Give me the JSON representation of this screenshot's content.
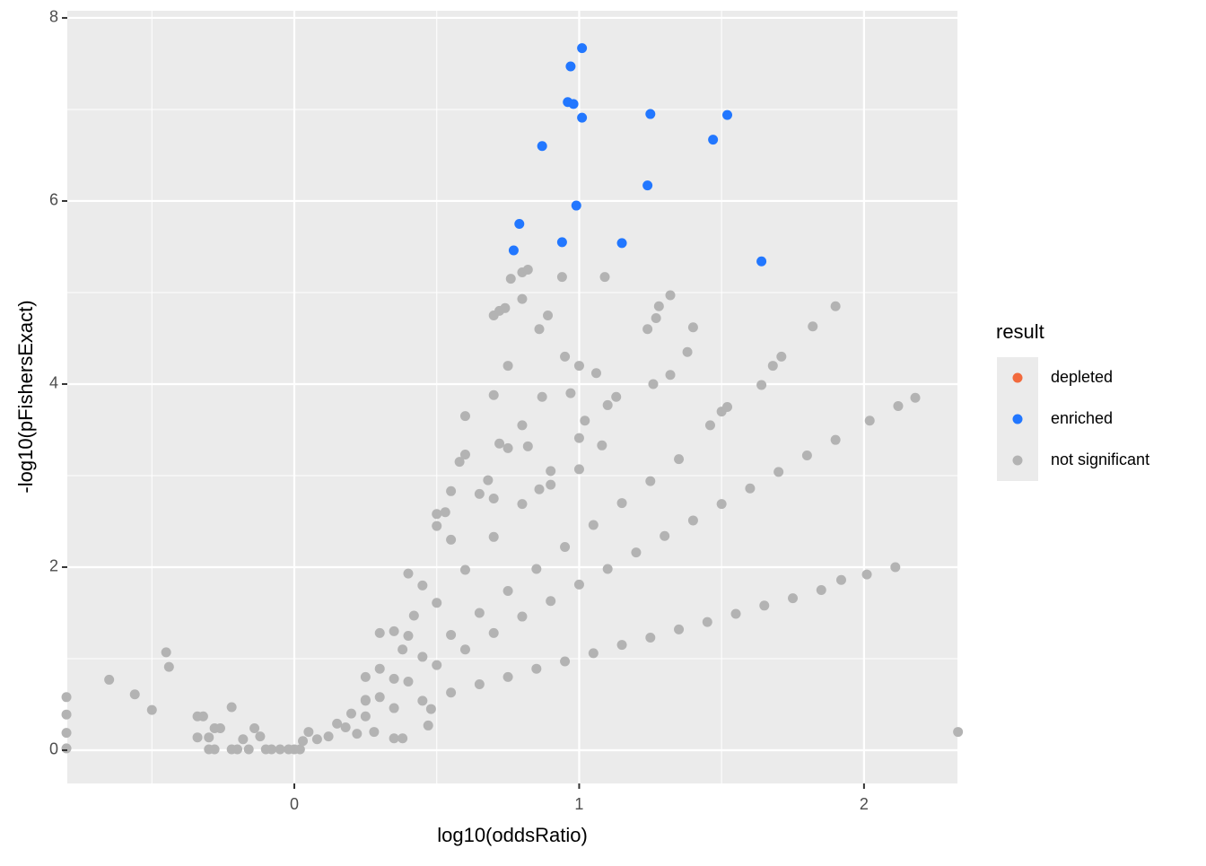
{
  "chart_data": {
    "type": "scatter",
    "x_label": "log10(oddsRatio)",
    "y_label": "-log10(pFishersExact)",
    "legend_title": "result",
    "legend": "right",
    "grid": true,
    "xlim": [
      -0.797,
      2.328
    ],
    "ylim": [
      -0.363,
      8.078
    ],
    "xticks": [
      0,
      1,
      2
    ],
    "yticks": [
      0,
      2,
      4,
      6,
      8
    ],
    "xminor": [
      -0.5,
      0.5,
      1.5
    ],
    "yminor": [
      1,
      3,
      5,
      7
    ],
    "series": [
      {
        "name": "depleted",
        "color": "#f26a3d",
        "x": [],
        "y": []
      },
      {
        "name": "enriched",
        "color": "#2277ff",
        "x": [
          1.01,
          0.97,
          0.96,
          0.98,
          1.01,
          1.25,
          1.52,
          1.47,
          0.87,
          1.24,
          0.99,
          0.79,
          0.94,
          1.15,
          0.77,
          1.64
        ],
        "y": [
          7.67,
          7.47,
          7.08,
          7.06,
          6.91,
          6.95,
          6.94,
          6.67,
          6.6,
          6.17,
          5.95,
          5.75,
          5.55,
          5.54,
          5.46,
          5.34
        ]
      },
      {
        "name": "not significant",
        "color": "#b3b3b3",
        "x": [
          -0.8,
          -0.8,
          -0.8,
          -0.8,
          -0.65,
          -0.56,
          -0.5,
          -0.45,
          -0.44,
          -0.34,
          -0.32,
          -0.34,
          -0.3,
          -0.28,
          -0.26,
          -0.3,
          -0.28,
          -0.22,
          -0.22,
          -0.2,
          -0.18,
          -0.16,
          -0.14,
          -0.12,
          -0.1,
          -0.08,
          -0.05,
          -0.02,
          0.0,
          0.02,
          0.03,
          2.33,
          0.05,
          0.15,
          0.25,
          0.35,
          0.45,
          0.55,
          0.65,
          0.75,
          0.85,
          0.95,
          1.05,
          1.15,
          1.25,
          1.35,
          1.45,
          1.55,
          1.65,
          1.75,
          1.85,
          1.92,
          2.01,
          2.11,
          0.2,
          0.3,
          0.4,
          0.5,
          0.6,
          0.7,
          0.8,
          0.9,
          1.0,
          1.1,
          1.2,
          1.3,
          1.4,
          1.5,
          1.6,
          1.7,
          1.8,
          1.9,
          0.25,
          0.35,
          0.45,
          0.55,
          0.65,
          0.75,
          0.85,
          0.95,
          1.05,
          1.15,
          1.25,
          1.35,
          1.46,
          1.5,
          1.52,
          0.3,
          0.4,
          0.5,
          0.6,
          0.7,
          0.8,
          0.9,
          1.0,
          1.1,
          1.38,
          1.32,
          1.26,
          0.25,
          0.35,
          0.45,
          0.55,
          0.65,
          0.75,
          0.8,
          0.3,
          0.4,
          0.5,
          0.6,
          0.7,
          0.75,
          0.7,
          0.72,
          0.74,
          0.76,
          0.8,
          0.82,
          0.8,
          0.86,
          0.89,
          0.94,
          1.09,
          1.0,
          0.95,
          0.97,
          0.87,
          1.06,
          1.13,
          1.28,
          1.32,
          1.4,
          1.64,
          1.68,
          1.71,
          1.82,
          1.9,
          2.02,
          2.12,
          2.18,
          0.82,
          0.72,
          0.6,
          0.58,
          0.55,
          0.53,
          0.5,
          0.42,
          0.38,
          0.35,
          0.38,
          0.47,
          0.48,
          1.0,
          1.02,
          1.08,
          0.9,
          0.86,
          0.7,
          0.68,
          0.28,
          0.22,
          0.18,
          0.12,
          0.08,
          0.25,
          1.24,
          1.27
        ],
        "y": [
          0.58,
          0.39,
          0.19,
          0.02,
          0.77,
          0.61,
          0.44,
          1.07,
          0.91,
          0.37,
          0.37,
          0.14,
          0.14,
          0.24,
          0.24,
          0.01,
          0.01,
          0.47,
          0.01,
          0.01,
          0.12,
          0.01,
          0.24,
          0.15,
          0.01,
          0.01,
          0.01,
          0.01,
          0.01,
          0.01,
          0.1,
          0.2,
          0.2,
          0.29,
          0.37,
          0.46,
          0.54,
          0.63,
          0.72,
          0.8,
          0.89,
          0.97,
          1.06,
          1.15,
          1.23,
          1.32,
          1.4,
          1.49,
          1.58,
          1.66,
          1.75,
          1.86,
          1.92,
          2.0,
          0.4,
          0.58,
          0.75,
          0.93,
          1.1,
          1.28,
          1.46,
          1.63,
          1.81,
          1.98,
          2.16,
          2.34,
          2.51,
          2.69,
          2.86,
          3.04,
          3.22,
          3.39,
          0.54,
          0.78,
          1.02,
          1.26,
          1.5,
          1.74,
          1.98,
          2.22,
          2.46,
          2.7,
          2.94,
          3.18,
          3.55,
          3.7,
          3.75,
          0.89,
          1.25,
          1.61,
          1.97,
          2.33,
          2.69,
          3.05,
          3.41,
          3.77,
          4.35,
          4.1,
          4.0,
          0.8,
          1.3,
          1.8,
          2.3,
          2.8,
          3.3,
          3.55,
          1.28,
          1.93,
          2.58,
          3.23,
          3.88,
          4.2,
          4.75,
          4.8,
          4.83,
          5.15,
          5.22,
          5.25,
          4.93,
          4.6,
          4.75,
          5.17,
          5.17,
          4.2,
          4.3,
          3.9,
          3.86,
          4.12,
          3.86,
          4.85,
          4.97,
          4.62,
          3.99,
          4.2,
          4.3,
          4.63,
          4.85,
          3.6,
          3.76,
          3.85,
          3.32,
          3.35,
          3.65,
          3.15,
          2.83,
          2.6,
          2.45,
          1.47,
          1.1,
          0.13,
          0.13,
          0.27,
          0.45,
          3.07,
          3.6,
          3.33,
          2.9,
          2.85,
          2.75,
          2.95,
          0.2,
          0.18,
          0.25,
          0.15,
          0.12,
          0.55,
          4.6,
          4.72
        ]
      }
    ]
  }
}
